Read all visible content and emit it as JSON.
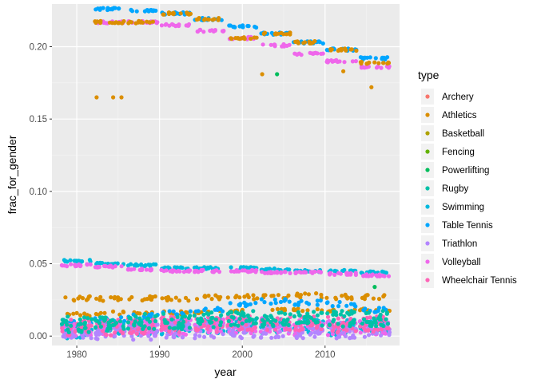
{
  "chart_data": {
    "type": "scatter",
    "title": "",
    "xlabel": "year",
    "ylabel": "frac_for_gender",
    "xlim": [
      1977,
      2019
    ],
    "ylim": [
      -0.0065,
      0.2295
    ],
    "x_ticks": [
      1980,
      1990,
      2000,
      2010
    ],
    "x_tick_labels": [
      "1980",
      "1990",
      "2000",
      "2010"
    ],
    "y_ticks": [
      0,
      0.05,
      0.1,
      0.15,
      0.2
    ],
    "y_tick_labels": [
      "0.00",
      "0.05",
      "0.10",
      "0.15",
      "0.20"
    ],
    "grid": true,
    "background": "#EBEBEB",
    "legend": {
      "title": "type",
      "position": "right",
      "entries": [
        {
          "name": "Archery",
          "color": "#F8766D"
        },
        {
          "name": "Athletics",
          "color": "#DB8E00"
        },
        {
          "name": "Basketball",
          "color": "#AEA200"
        },
        {
          "name": "Fencing",
          "color": "#64B200"
        },
        {
          "name": "Powerlifting",
          "color": "#00BD5C"
        },
        {
          "name": "Rugby",
          "color": "#00C1A7"
        },
        {
          "name": "Swimming",
          "color": "#00BADE"
        },
        {
          "name": "Table Tennis",
          "color": "#00A6FF"
        },
        {
          "name": "Triathlon",
          "color": "#B385FF"
        },
        {
          "name": "Volleyball",
          "color": "#EF67EB"
        },
        {
          "name": "Wheelchair Tennis",
          "color": "#FF63B6"
        }
      ]
    },
    "games_years": [
      1980,
      1984,
      1988,
      1992,
      1996,
      2000,
      2004,
      2008,
      2012,
      2016
    ],
    "series": [
      {
        "name": "Swimming",
        "band": "high",
        "x": [
          1980,
          1984,
          1988,
          1992,
          1996,
          2000,
          2004,
          2008,
          2012,
          2016
        ],
        "y": [
          0.052,
          0.05,
          0.049,
          0.047,
          0.047,
          0.047,
          0.046,
          0.045,
          0.045,
          0.044
        ]
      },
      {
        "name": "Volleyball",
        "band": "high",
        "x": [
          1980,
          1984,
          1988,
          1992,
          1996,
          2000,
          2004,
          2008,
          2012,
          2016
        ],
        "y": [
          0.049,
          0.048,
          0.046,
          0.045,
          0.045,
          0.045,
          0.044,
          0.044,
          0.043,
          0.042
        ]
      },
      {
        "name": "Table Tennis",
        "band": "top",
        "x": [
          1984,
          1988,
          1992,
          1996,
          2000,
          2004,
          2008,
          2012,
          2016
        ],
        "y": [
          0.226,
          0.225,
          0.223,
          0.219,
          0.214,
          0.209,
          0.203,
          0.198,
          0.192
        ]
      },
      {
        "name": "Volleyball",
        "band": "top",
        "x": [
          1984,
          1988,
          1992,
          1996,
          2000,
          2004,
          2008,
          2012,
          2016
        ],
        "y": [
          0.217,
          0.217,
          0.215,
          0.211,
          0.206,
          0.201,
          0.195,
          0.19,
          0.186
        ]
      },
      {
        "name": "Athletics",
        "band": "top",
        "x": [
          1984,
          1988,
          1992,
          1996,
          2000,
          2004,
          2008,
          2012,
          2016
        ],
        "y": [
          0.217,
          0.217,
          0.223,
          0.219,
          0.206,
          0.209,
          0.203,
          0.198,
          0.189
        ]
      },
      {
        "name": "Athletics",
        "band": "outlier",
        "x": [
          1982.4,
          1984.4,
          1985.4,
          2002.4,
          2012.2,
          2015.6
        ],
        "y": [
          0.165,
          0.165,
          0.165,
          0.181,
          0.183,
          0.172
        ]
      },
      {
        "name": "Powerlifting",
        "band": "outlier",
        "x": [
          2004.2,
          2016.0
        ],
        "y": [
          0.181,
          0.034
        ]
      },
      {
        "name": "Athletics",
        "band": "mid",
        "x": [
          1980,
          1984,
          1988,
          1992,
          1996,
          2000,
          2004,
          2008,
          2012,
          2016
        ],
        "y": [
          0.026,
          0.026,
          0.026,
          0.026,
          0.027,
          0.027,
          0.027,
          0.028,
          0.027,
          0.027
        ]
      },
      {
        "name": "Athletics",
        "band": "mid-low",
        "x": [
          1980,
          1984,
          1988,
          1992,
          1996,
          2000,
          2004,
          2008,
          2012,
          2016
        ],
        "y": [
          0.015,
          0.016,
          0.016,
          0.016,
          0.017,
          0.017,
          0.018,
          0.018,
          0.018,
          0.018
        ]
      },
      {
        "name": "Table Tennis",
        "band": "mid",
        "x": [
          1980,
          1984,
          1988,
          1992,
          1996,
          2000,
          2004,
          2008,
          2012,
          2016
        ],
        "y": [
          0.01,
          0.012,
          0.014,
          0.016,
          0.018,
          0.022,
          0.024,
          0.023,
          0.022,
          0.018
        ]
      },
      {
        "name": "Swimming",
        "band": "low",
        "x": [
          1980,
          1984,
          1988,
          1992,
          1996,
          2000,
          2004,
          2008,
          2012,
          2016
        ],
        "y": [
          0.004,
          0.005,
          0.006,
          0.006,
          0.007,
          0.007,
          0.007,
          0.007,
          0.006,
          0.006
        ]
      },
      {
        "name": "Volleyball",
        "band": "low",
        "x": [
          1980,
          1984,
          1988,
          1992,
          1996,
          2000,
          2004,
          2008,
          2012,
          2016
        ],
        "y": [
          0.005,
          0.005,
          0.005,
          0.006,
          0.007,
          0.007,
          0.007,
          0.006,
          0.006,
          0.006
        ]
      },
      {
        "name": "Triathlon",
        "band": "low",
        "x": [
          1980,
          1984,
          1988,
          1992,
          1996,
          2000,
          2004,
          2008,
          2012,
          2016
        ],
        "y": [
          0.003,
          0.003,
          0.003,
          0.004,
          0.004,
          0.004,
          0.004,
          0.004,
          0.004,
          0.004
        ]
      },
      {
        "name": "Wheelchair Tennis",
        "band": "low",
        "x": [
          1980,
          1984,
          1988,
          1992,
          1996,
          2000,
          2004,
          2008,
          2012,
          2016
        ],
        "y": [
          0.006,
          0.006,
          0.007,
          0.008,
          0.008,
          0.009,
          0.009,
          0.009,
          0.008,
          0.008
        ]
      },
      {
        "name": "Rugby",
        "band": "low",
        "x": [
          1980,
          1984,
          1988,
          1992,
          1996,
          2000,
          2004,
          2008,
          2012,
          2016
        ],
        "y": [
          0.008,
          0.009,
          0.01,
          0.01,
          0.011,
          0.012,
          0.012,
          0.012,
          0.012,
          0.012
        ]
      }
    ]
  }
}
